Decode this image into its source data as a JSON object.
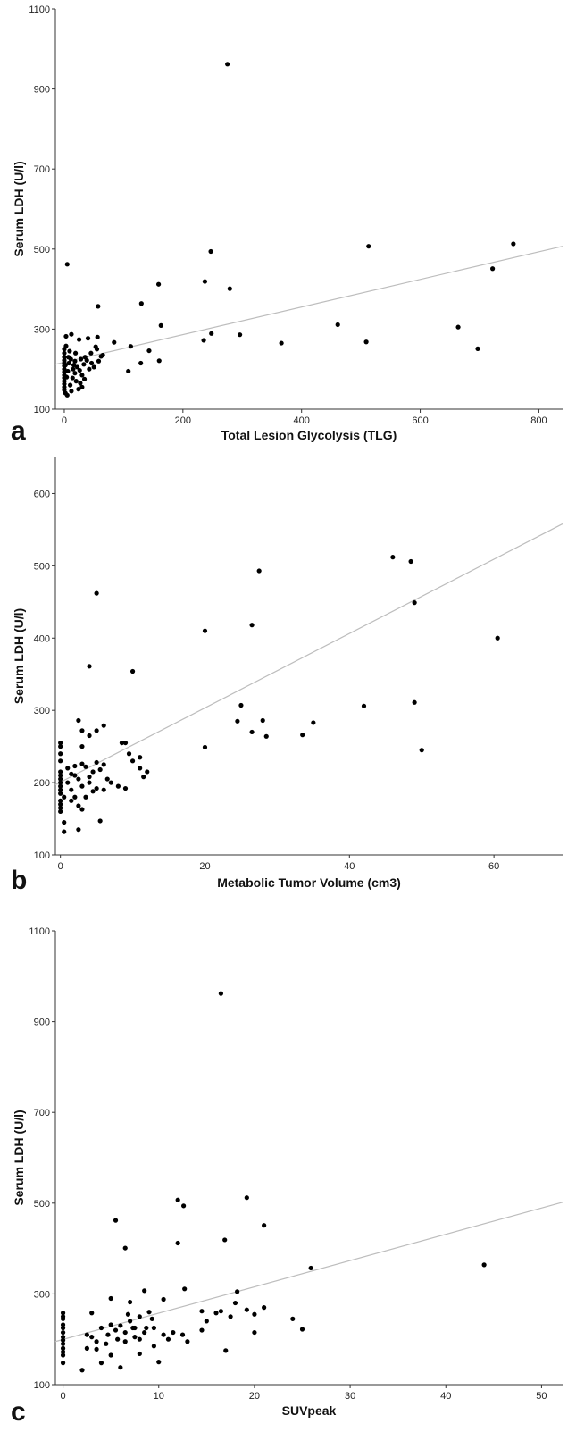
{
  "chart_data": [
    {
      "panel_label": "a",
      "type": "scatter",
      "xlabel": "Total Lesion Glycolysis (TLG)",
      "ylabel": "Serum LDH (U/l)",
      "xlim": [
        -15,
        840
      ],
      "ylim": [
        100,
        1100
      ],
      "xticks": [
        0,
        200,
        400,
        600,
        800
      ],
      "yticks": [
        100,
        300,
        500,
        700,
        900,
        1100
      ],
      "fit_line": [
        [
          -15,
          212
        ],
        [
          840,
          507
        ]
      ],
      "points": [
        [
          275,
          962
        ],
        [
          5,
          462
        ],
        [
          513,
          507
        ],
        [
          757,
          513
        ],
        [
          722,
          451
        ],
        [
          247,
          494
        ],
        [
          237,
          419
        ],
        [
          159,
          412
        ],
        [
          279,
          401
        ],
        [
          130,
          364
        ],
        [
          57,
          357
        ],
        [
          163,
          309
        ],
        [
          461,
          311
        ],
        [
          664,
          305
        ],
        [
          697,
          251
        ],
        [
          509,
          268
        ],
        [
          366,
          265
        ],
        [
          296,
          286
        ],
        [
          248,
          289
        ],
        [
          235,
          272
        ],
        [
          143,
          246
        ],
        [
          112,
          257
        ],
        [
          84,
          267
        ],
        [
          108,
          195
        ],
        [
          129,
          215
        ],
        [
          160,
          221
        ],
        [
          62,
          232
        ],
        [
          53,
          256
        ],
        [
          56,
          280
        ],
        [
          40,
          277
        ],
        [
          25,
          274
        ],
        [
          12,
          287
        ],
        [
          3,
          282
        ],
        [
          45,
          240
        ],
        [
          35,
          230
        ],
        [
          28,
          225
        ],
        [
          18,
          220
        ],
        [
          8,
          215
        ],
        [
          2,
          210
        ],
        [
          0,
          250
        ],
        [
          0,
          240
        ],
        [
          0,
          230
        ],
        [
          0,
          222
        ],
        [
          0,
          215
        ],
        [
          0,
          208
        ],
        [
          0,
          200
        ],
        [
          0,
          193
        ],
        [
          0,
          185
        ],
        [
          0,
          178
        ],
        [
          0,
          170
        ],
        [
          0,
          163
        ],
        [
          0,
          155
        ],
        [
          0,
          148
        ],
        [
          2,
          140
        ],
        [
          5,
          135
        ],
        [
          10,
          160
        ],
        [
          14,
          178
        ],
        [
          18,
          190
        ],
        [
          22,
          205
        ],
        [
          26,
          197
        ],
        [
          30,
          185
        ],
        [
          33,
          212
        ],
        [
          15,
          200
        ],
        [
          20,
          170
        ],
        [
          12,
          145
        ],
        [
          24,
          150
        ],
        [
          6,
          195
        ],
        [
          4,
          180
        ],
        [
          7,
          230
        ],
        [
          9,
          245
        ],
        [
          3,
          258
        ],
        [
          50,
          205
        ],
        [
          46,
          215
        ],
        [
          58,
          220
        ],
        [
          38,
          222
        ],
        [
          42,
          200
        ],
        [
          16,
          210
        ],
        [
          11,
          225
        ],
        [
          27,
          165
        ],
        [
          34,
          175
        ],
        [
          30,
          155
        ],
        [
          19,
          240
        ],
        [
          55,
          250
        ],
        [
          65,
          235
        ]
      ]
    },
    {
      "panel_label": "b",
      "type": "scatter",
      "xlabel": "Metabolic Tumor Volume (cm3)",
      "ylabel": "Serum LDH (U/l)",
      "xlim": [
        -0.7,
        69.5
      ],
      "ylim": [
        100,
        650
      ],
      "xticks": [
        0,
        20,
        40,
        60
      ],
      "yticks": [
        100,
        200,
        300,
        400,
        500,
        600
      ],
      "fit_line": [
        [
          -0.7,
          197
        ],
        [
          69.5,
          558
        ]
      ],
      "points": [
        [
          46,
          512
        ],
        [
          48.5,
          506
        ],
        [
          27.5,
          493
        ],
        [
          49,
          449
        ],
        [
          26.5,
          418
        ],
        [
          20,
          410
        ],
        [
          60.5,
          400
        ],
        [
          5,
          462
        ],
        [
          4,
          361
        ],
        [
          10,
          354
        ],
        [
          42,
          306
        ],
        [
          49,
          311
        ],
        [
          25,
          307
        ],
        [
          24.5,
          285
        ],
        [
          28,
          286
        ],
        [
          35,
          283
        ],
        [
          26.5,
          270
        ],
        [
          28.5,
          264
        ],
        [
          33.5,
          266
        ],
        [
          50,
          245
        ],
        [
          20,
          249
        ],
        [
          2.5,
          286
        ],
        [
          3,
          272
        ],
        [
          5,
          272
        ],
        [
          6,
          279
        ],
        [
          4,
          265
        ],
        [
          3,
          250
        ],
        [
          0,
          255
        ],
        [
          0,
          250
        ],
        [
          0,
          240
        ],
        [
          0,
          230
        ],
        [
          0,
          215
        ],
        [
          0,
          210
        ],
        [
          0,
          205
        ],
        [
          0,
          200
        ],
        [
          0,
          195
        ],
        [
          0,
          190
        ],
        [
          0,
          185
        ],
        [
          0,
          175
        ],
        [
          0,
          170
        ],
        [
          0,
          165
        ],
        [
          0,
          160
        ],
        [
          0.5,
          145
        ],
        [
          0.5,
          132
        ],
        [
          2.5,
          135
        ],
        [
          5.5,
          147
        ],
        [
          1,
          220
        ],
        [
          1.5,
          212
        ],
        [
          2,
          223
        ],
        [
          2.5,
          205
        ],
        [
          3,
          195
        ],
        [
          3.5,
          180
        ],
        [
          4,
          200
        ],
        [
          4.5,
          215
        ],
        [
          5,
          228
        ],
        [
          5.5,
          218
        ],
        [
          6,
          225
        ],
        [
          6.5,
          205
        ],
        [
          3,
          226
        ],
        [
          2,
          180
        ],
        [
          1.5,
          190
        ],
        [
          1,
          200
        ],
        [
          2.5,
          168
        ],
        [
          3,
          163
        ],
        [
          4.5,
          188
        ],
        [
          5,
          192
        ],
        [
          8.5,
          255
        ],
        [
          9,
          255
        ],
        [
          9.5,
          240
        ],
        [
          10,
          230
        ],
        [
          11,
          235
        ],
        [
          11,
          220
        ],
        [
          11.5,
          208
        ],
        [
          12,
          215
        ],
        [
          8,
          195
        ],
        [
          9,
          192
        ],
        [
          7,
          200
        ],
        [
          6,
          190
        ],
        [
          1.5,
          175
        ],
        [
          2,
          210
        ],
        [
          0.5,
          180
        ],
        [
          3.5,
          222
        ],
        [
          4,
          208
        ]
      ]
    },
    {
      "panel_label": "c",
      "type": "scatter",
      "xlabel": "SUVpeak",
      "ylabel": "Serum LDH (U/l)",
      "xlim": [
        -0.8,
        52.2
      ],
      "ylim": [
        100,
        1100
      ],
      "xticks": [
        0,
        10,
        20,
        30,
        40,
        50
      ],
      "yticks": [
        100,
        300,
        500,
        700,
        900,
        1100
      ],
      "fit_line": [
        [
          -0.8,
          195
        ],
        [
          52.2,
          502
        ]
      ],
      "points": [
        [
          16.5,
          962
        ],
        [
          12,
          507
        ],
        [
          19.2,
          512
        ],
        [
          12.6,
          494
        ],
        [
          5.5,
          462
        ],
        [
          21,
          451
        ],
        [
          16.9,
          419
        ],
        [
          12,
          412
        ],
        [
          6.5,
          401
        ],
        [
          25.9,
          357
        ],
        [
          44,
          364
        ],
        [
          8.5,
          307
        ],
        [
          18.2,
          305
        ],
        [
          12.7,
          311
        ],
        [
          10.5,
          288
        ],
        [
          5,
          290
        ],
        [
          7,
          282
        ],
        [
          3,
          258
        ],
        [
          0,
          258
        ],
        [
          0,
          250
        ],
        [
          0,
          245
        ],
        [
          0,
          232
        ],
        [
          0,
          225
        ],
        [
          0,
          215
        ],
        [
          0,
          205
        ],
        [
          0,
          198
        ],
        [
          0,
          190
        ],
        [
          0,
          180
        ],
        [
          0,
          172
        ],
        [
          0,
          165
        ],
        [
          0,
          148
        ],
        [
          2,
          132
        ],
        [
          4,
          148
        ],
        [
          6,
          138
        ],
        [
          10,
          150
        ],
        [
          5,
          165
        ],
        [
          8,
          168
        ],
        [
          3.5,
          178
        ],
        [
          4.5,
          190
        ],
        [
          6.5,
          195
        ],
        [
          7.5,
          205
        ],
        [
          8.5,
          215
        ],
        [
          9.5,
          225
        ],
        [
          3,
          205
        ],
        [
          2.5,
          210
        ],
        [
          5.5,
          220
        ],
        [
          6,
          230
        ],
        [
          7,
          240
        ],
        [
          8,
          250
        ],
        [
          9,
          260
        ],
        [
          4,
          225
        ],
        [
          5,
          232
        ],
        [
          7.5,
          225
        ],
        [
          11.5,
          215
        ],
        [
          11,
          200
        ],
        [
          12.5,
          210
        ],
        [
          13,
          195
        ],
        [
          14.5,
          220
        ],
        [
          15,
          240
        ],
        [
          16,
          258
        ],
        [
          16.5,
          262
        ],
        [
          17.5,
          250
        ],
        [
          18,
          280
        ],
        [
          19.2,
          265
        ],
        [
          20,
          255
        ],
        [
          21,
          270
        ],
        [
          20,
          215
        ],
        [
          24,
          245
        ],
        [
          25,
          222
        ],
        [
          14.5,
          262
        ],
        [
          17,
          175
        ],
        [
          9.5,
          185
        ],
        [
          8,
          200
        ],
        [
          10.5,
          210
        ],
        [
          6.5,
          215
        ],
        [
          3.5,
          195
        ],
        [
          2.5,
          180
        ],
        [
          7.3,
          225
        ],
        [
          8.7,
          225
        ],
        [
          4.7,
          210
        ],
        [
          5.7,
          200
        ],
        [
          9.3,
          245
        ],
        [
          6.8,
          255
        ]
      ]
    }
  ]
}
